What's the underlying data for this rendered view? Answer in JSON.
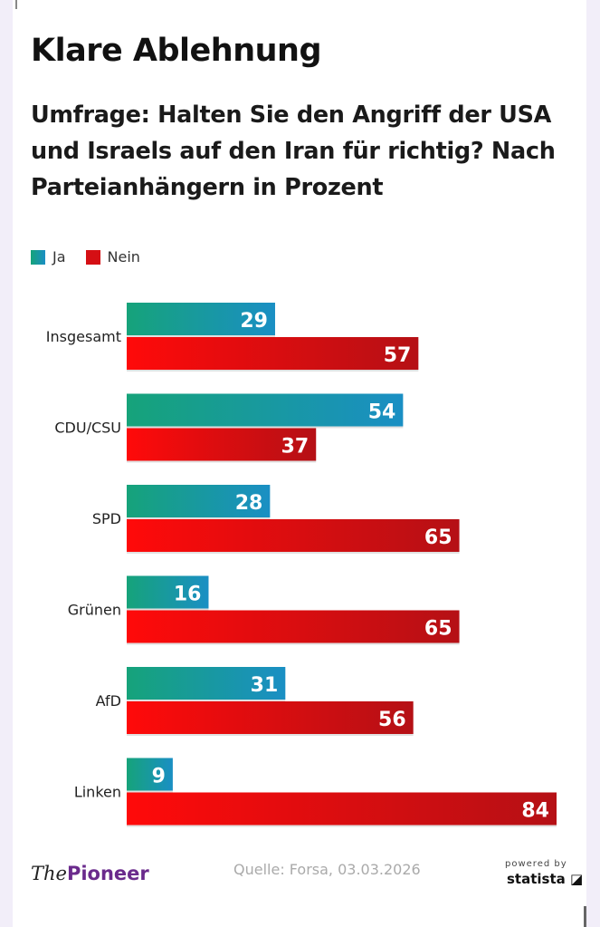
{
  "chart_data": {
    "type": "bar",
    "orientation": "horizontal",
    "title": "Klare Ablehnung",
    "subtitle": "Umfrage: Halten Sie den Angriff der USA und Israels auf den Iran für richtig? Nach Parteianhängern in Prozent",
    "categories": [
      "Insgesamt",
      "CDU/CSU",
      "SPD",
      "Grünen",
      "AfD",
      "Linken"
    ],
    "series": [
      {
        "name": "Ja",
        "values": [
          29,
          54,
          28,
          16,
          31,
          9
        ],
        "color": "#1a8fc4",
        "color_start": "#16a37a"
      },
      {
        "name": "Nein",
        "values": [
          57,
          37,
          65,
          65,
          56,
          84
        ],
        "color": "#b51015",
        "color_start": "#ff0a0a"
      }
    ],
    "xlim": [
      0,
      84
    ],
    "grid": false,
    "legend": "top-left",
    "data_labels": true
  },
  "footer": {
    "logo_the": "The",
    "logo_pioneer": "Pioneer",
    "source": "Quelle: Forsa, 03.03.2026",
    "powered_by": "powered by",
    "statista": "statista"
  }
}
